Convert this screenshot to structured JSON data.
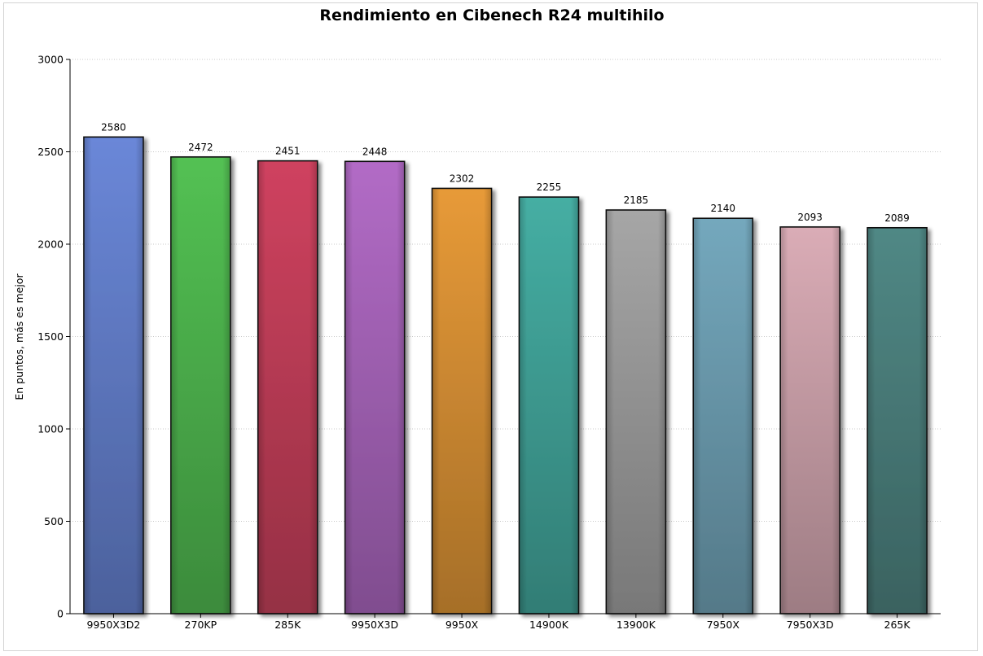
{
  "chart_data": {
    "type": "bar",
    "title": "Rendimiento en Cibenech R24 multihilo",
    "xlabel": "",
    "ylabel": "En puntos, más es mejor",
    "ylim": [
      0,
      3000
    ],
    "yticks": [
      0,
      500,
      1000,
      1500,
      2000,
      2500,
      3000
    ],
    "grid": true,
    "categories": [
      "9950X3D2",
      "270KP",
      "285K",
      "9950X3D",
      "9950X",
      "14900K",
      "13900K",
      "7950X",
      "7950X3D",
      "265K"
    ],
    "values": [
      2580,
      2472,
      2451,
      2448,
      2302,
      2255,
      2185,
      2140,
      2093,
      2089
    ],
    "colors": [
      "#6a87d8",
      "#53c153",
      "#cf425f",
      "#b26bc6",
      "#e79a38",
      "#45aea3",
      "#a6a6a6",
      "#74a8bd",
      "#daacb6",
      "#508885"
    ]
  }
}
